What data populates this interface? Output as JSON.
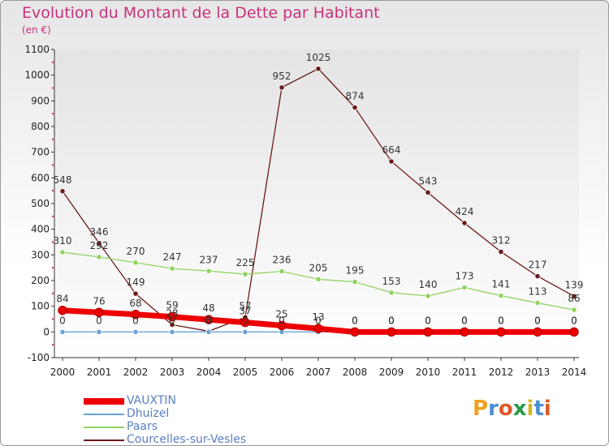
{
  "title": "Evolution du Montant de la Dette par Habitant",
  "subtitle": "(en €)",
  "brand": "Proxiti",
  "chart_data": {
    "type": "line",
    "title": "Evolution du Montant de la Dette par Habitant",
    "ylabel": "(en €)",
    "x": [
      "2000",
      "2001",
      "2002",
      "2003",
      "2004",
      "2005",
      "2006",
      "2007",
      "2008",
      "2009",
      "2010",
      "2011",
      "2012",
      "2013",
      "2014"
    ],
    "ylim": [
      -100,
      1100
    ],
    "yticks": [
      -100,
      0,
      100,
      200,
      300,
      400,
      500,
      600,
      700,
      800,
      900,
      1000,
      1100
    ],
    "grid": false,
    "legend_position": "bottom-left",
    "series": [
      {
        "name": "VAUXTIN",
        "color": "#ee0000",
        "values": [
          84,
          76,
          68,
          59,
          48,
          37,
          25,
          13,
          0,
          0,
          0,
          0,
          0,
          0,
          0
        ],
        "labels": [
          "84",
          "76",
          "68",
          "59",
          "48",
          "37",
          "25",
          "13",
          "0",
          "0",
          "0",
          "0",
          "0",
          "0",
          "0"
        ]
      },
      {
        "name": "Dhuizel",
        "color": "#6aa3d5",
        "values": [
          0,
          0,
          0,
          0,
          0,
          0,
          0,
          0,
          0,
          0,
          0,
          0,
          0,
          0,
          0
        ],
        "labels": [
          "0",
          "0",
          "0",
          "0",
          "0",
          "0",
          "0",
          "0",
          "0",
          "0",
          "0",
          "0",
          "0",
          "0",
          "0"
        ]
      },
      {
        "name": "Paars",
        "color": "#8fd35e",
        "values": [
          310,
          292,
          270,
          247,
          237,
          225,
          236,
          205,
          195,
          153,
          140,
          173,
          141,
          113,
          86
        ],
        "labels": [
          "310",
          "292",
          "270",
          "247",
          "237",
          "225",
          "236",
          "205",
          "195",
          "153",
          "140",
          "173",
          "141",
          "113",
          "86"
        ]
      },
      {
        "name": "Courcelles-sur-Vesles",
        "color": "#6b1a1a",
        "values": [
          548,
          346,
          149,
          28,
          3,
          57,
          952,
          1025,
          874,
          664,
          543,
          424,
          312,
          217,
          139
        ],
        "labels": [
          "548",
          "346",
          "149",
          "28",
          "3",
          "57",
          "952",
          "1025",
          "874",
          "664",
          "543",
          "424",
          "312",
          "217",
          "139"
        ]
      }
    ]
  }
}
